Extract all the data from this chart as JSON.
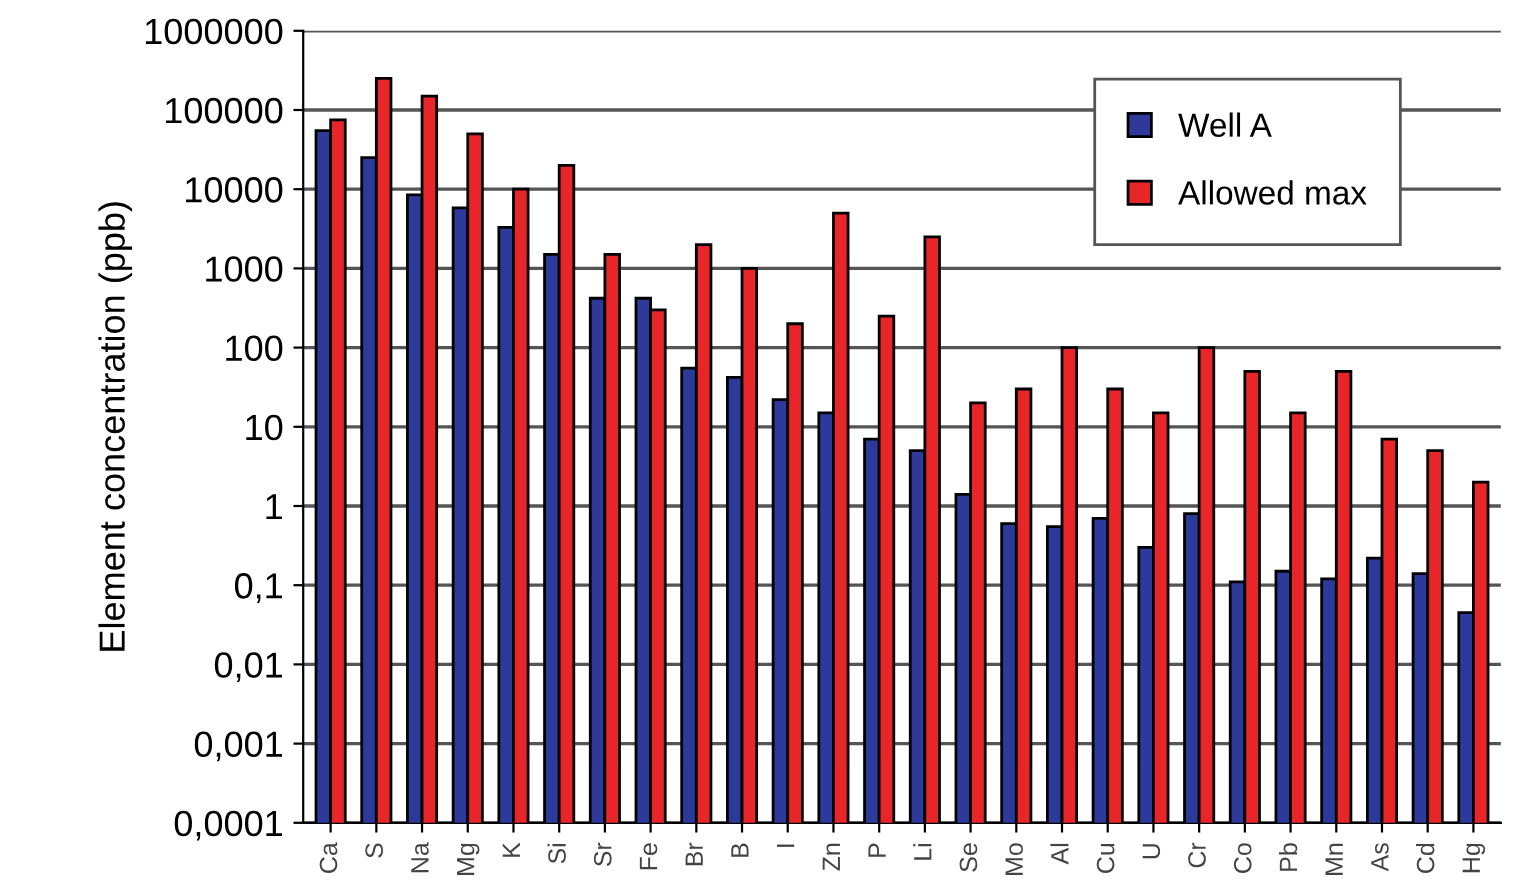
{
  "chart_data": {
    "type": "bar",
    "ylabel": "Element concentration (ppb)",
    "log": "y",
    "grid": "y",
    "legend": "top right",
    "categories": [
      "Ca",
      "S",
      "Na",
      "Mg",
      "K",
      "Si",
      "Sr",
      "Fe",
      "Br",
      "B",
      "I",
      "Zn",
      "P",
      "Li",
      "Se",
      "Mo",
      "Al",
      "Cu",
      "U",
      "Cr",
      "Co",
      "Pb",
      "Mn",
      "As",
      "Cd",
      "Hg"
    ],
    "series": [
      {
        "name": "Well A",
        "color": "#2e3a9a",
        "values": [
          55000,
          25000,
          8500,
          5800,
          3300,
          1500,
          420,
          420,
          55,
          42,
          22,
          15,
          7,
          5,
          1.4,
          0.6,
          0.55,
          0.7,
          0.3,
          0.8,
          0.11,
          0.15,
          0.12,
          0.22,
          0.14,
          0.045
        ]
      },
      {
        "name": "Allowed max",
        "color": "#e8262a",
        "values": [
          75000,
          250000,
          150000,
          50000,
          10000,
          20000,
          1500,
          300,
          2000,
          1000,
          200,
          5000,
          250,
          2500,
          20,
          30,
          100,
          30,
          15,
          100,
          50,
          15,
          50,
          7,
          5,
          2
        ]
      }
    ],
    "ylim": [
      0.0001,
      1000000
    ],
    "yticks": [
      {
        "value": 0.0001,
        "label": "0,0001"
      },
      {
        "value": 0.001,
        "label": "0,001"
      },
      {
        "value": 0.01,
        "label": "0,01"
      },
      {
        "value": 0.1,
        "label": "0,1"
      },
      1,
      10,
      100,
      1000,
      10000,
      100000,
      1000000
    ]
  }
}
